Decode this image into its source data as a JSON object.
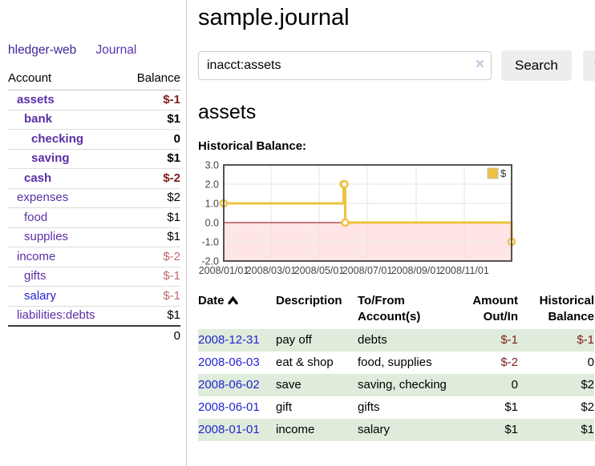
{
  "sidebar": {
    "app_title": "hledger-web",
    "journal_link": "Journal",
    "table": {
      "header_account": "Account",
      "header_balance": "Balance",
      "rows": [
        {
          "name": "assets",
          "balance": "$-1",
          "depth": 1
        },
        {
          "name": "bank",
          "balance": "$1",
          "depth": 2
        },
        {
          "name": "checking",
          "balance": "0",
          "depth": 3
        },
        {
          "name": "saving",
          "balance": "$1",
          "depth": 3
        },
        {
          "name": "cash",
          "balance": "$-2",
          "depth": 2
        },
        {
          "name": "expenses",
          "balance": "$2",
          "depth": 1
        },
        {
          "name": "food",
          "balance": "$1",
          "depth": 2
        },
        {
          "name": "supplies",
          "balance": "$1",
          "depth": 2
        },
        {
          "name": "income",
          "balance": "$-2",
          "depth": 1
        },
        {
          "name": "gifts",
          "balance": "$-1",
          "depth": 2
        },
        {
          "name": "salary",
          "balance": "$-1",
          "depth": 2
        },
        {
          "name": "liabilities:debts",
          "balance": "$1",
          "depth": 1
        }
      ],
      "total": "0"
    }
  },
  "main": {
    "title": "sample.journal",
    "search": {
      "value": "inacct:assets",
      "clear_icon": "×",
      "button_label": "Search",
      "help_label": "?"
    },
    "account_heading": "assets",
    "section_label": "Historical Balance:"
  },
  "chart_data": {
    "type": "line",
    "title": "Historical Balance",
    "series": [
      {
        "name": "$",
        "color": "#EDC240",
        "step": true,
        "points": [
          [
            "2008-01-01",
            1
          ],
          [
            "2008-06-01",
            2
          ],
          [
            "2008-06-02",
            2
          ],
          [
            "2008-06-03",
            0
          ],
          [
            "2008-12-31",
            -1
          ]
        ]
      }
    ],
    "x_ticks": [
      "2008/01/01",
      "2008/03/01",
      "2008/05/01",
      "2008/07/01",
      "2008/09/01",
      "2008/11/01"
    ],
    "y_ticks": [
      3.0,
      2.0,
      1.0,
      0.0,
      -1.0,
      -2.0
    ],
    "ylim": [
      -2,
      3
    ],
    "xlim": [
      "2008-01-01",
      "2008-12-31"
    ],
    "legend": "$",
    "legend_position": "top-right",
    "grid": true,
    "negative_region_color": "rgba(255,0,0,0.1)",
    "zero_line_color": "#8b0000",
    "border_color": "#545454"
  },
  "transactions": {
    "headers": {
      "date": "Date",
      "description": "Description",
      "accounts": "To/From Account(s)",
      "amount": "Amount Out/In",
      "balance": "Historical Balance"
    },
    "rows": [
      {
        "date": "2008-12-31",
        "description": "pay off",
        "accounts": "debts",
        "amount": "$-1",
        "balance": "$-1"
      },
      {
        "date": "2008-06-03",
        "description": "eat & shop",
        "accounts": "food, supplies",
        "amount": "$-2",
        "balance": "0"
      },
      {
        "date": "2008-06-02",
        "description": "save",
        "accounts": "saving, checking",
        "amount": "0",
        "balance": "$2"
      },
      {
        "date": "2008-06-01",
        "description": "gift",
        "accounts": "gifts",
        "amount": "$1",
        "balance": "$2"
      },
      {
        "date": "2008-01-01",
        "description": "income",
        "accounts": "salary",
        "amount": "$1",
        "balance": "$1"
      }
    ]
  },
  "colors": {
    "link_purple": "#5a2fa5",
    "link_blue": "#2424cf",
    "negative_red": "#7e1c1c",
    "negative_muted": "#bd6a6e",
    "row_green": "#dfecdb",
    "button_bg": "#ededed",
    "series_gold": "#EDC240"
  }
}
